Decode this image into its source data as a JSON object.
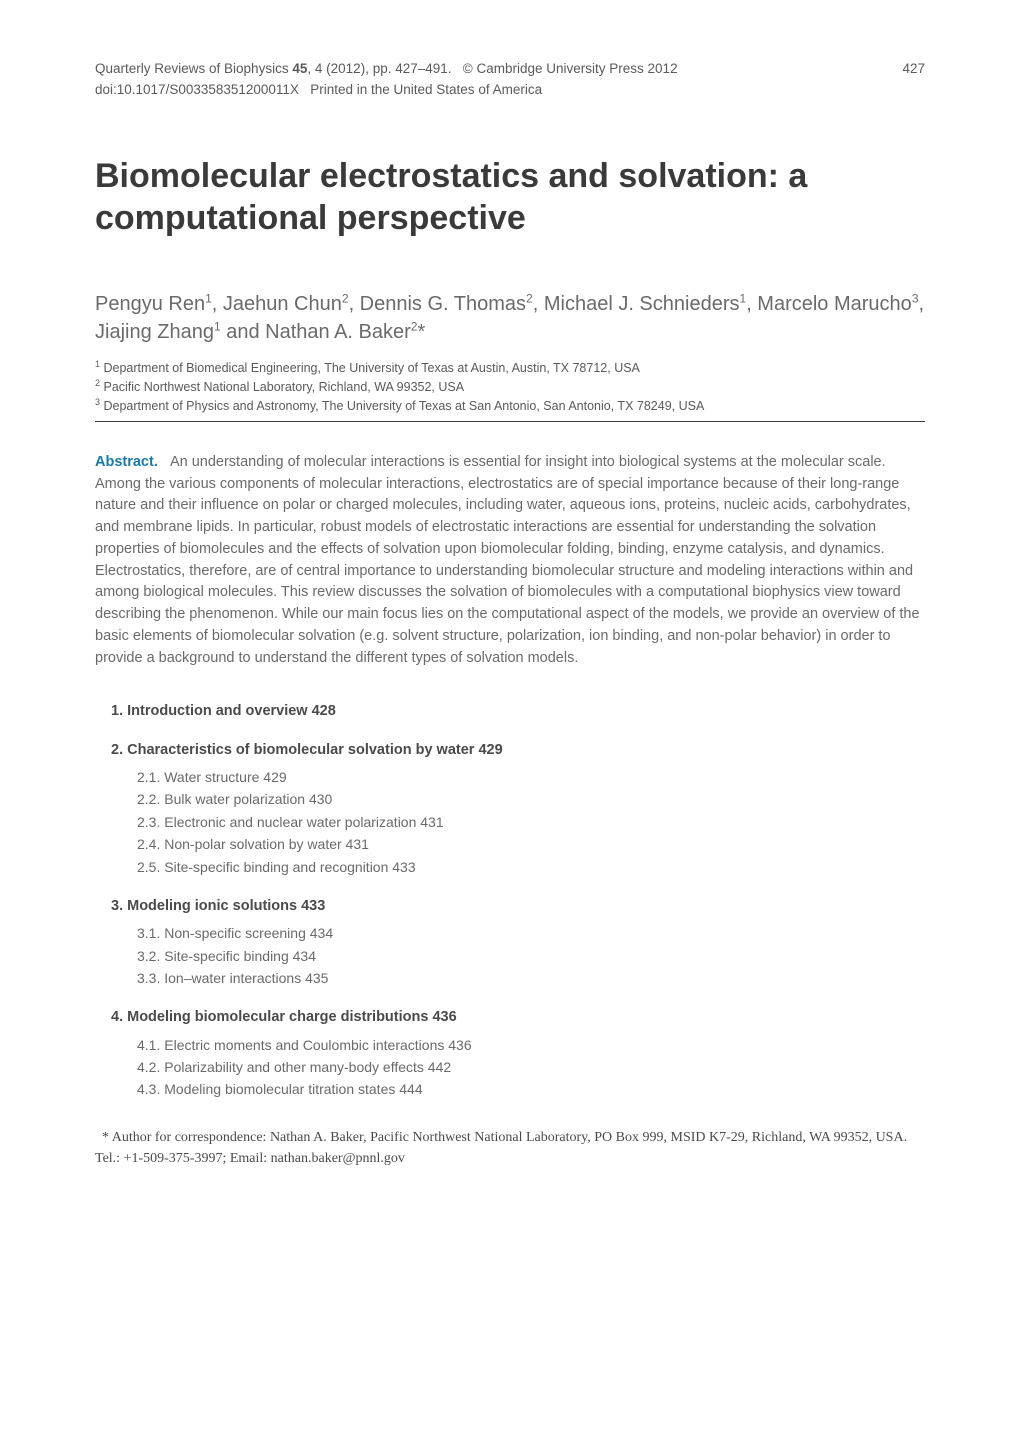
{
  "journal": {
    "name": "Quarterly Reviews of Biophysics",
    "volume": "45",
    "issue": "4",
    "year": "2012",
    "pages": "pp. 427–491",
    "copyright": "© Cambridge University Press 2012",
    "doi": "doi:10.1017/S003358351200011X",
    "printed": "Printed in the United States of America",
    "page_number": "427"
  },
  "title": "Biomolecular electrostatics and solvation: a computational perspective",
  "authors_html": "Pengyu Ren<sup>1</sup>, Jaehun Chun<sup>2</sup>, Dennis G. Thomas<sup>2</sup>, Michael J. Schnieders<sup>1</sup>, Marcelo Marucho<sup>3</sup>, Jiajing Zhang<sup>1</sup> and Nathan A. Baker<sup>2</sup>*",
  "affiliations": [
    {
      "num": "1",
      "text": "Department of Biomedical Engineering, The University of Texas at Austin, Austin, TX 78712, USA"
    },
    {
      "num": "2",
      "text": "Pacific Northwest National Laboratory, Richland, WA 99352, USA"
    },
    {
      "num": "3",
      "text": "Department of Physics and Astronomy, The University of Texas at San Antonio, San Antonio, TX 78249, USA"
    }
  ],
  "abstract": {
    "label": "Abstract.",
    "text": "An understanding of molecular interactions is essential for insight into biological systems at the molecular scale. Among the various components of molecular interactions, electrostatics are of special importance because of their long-range nature and their influence on polar or charged molecules, including water, aqueous ions, proteins, nucleic acids, carbohydrates, and membrane lipids. In particular, robust models of electrostatic interactions are essential for understanding the solvation properties of biomolecules and the effects of solvation upon biomolecular folding, binding, enzyme catalysis, and dynamics. Electrostatics, therefore, are of central importance to understanding biomolecular structure and modeling interactions within and among biological molecules. This review discusses the solvation of biomolecules with a computational biophysics view toward describing the phenomenon. While our main focus lies on the computational aspect of the models, we provide an overview of the basic elements of biomolecular solvation (e.g. solvent structure, polarization, ion binding, and non-polar behavior) in order to provide a background to understand the different types of solvation models."
  },
  "toc": [
    {
      "num": "1.",
      "title": "Introduction and overview",
      "page": "428",
      "subs": []
    },
    {
      "num": "2.",
      "title": "Characteristics of biomolecular solvation by water",
      "page": "429",
      "subs": [
        {
          "num": "2.1.",
          "title": "Water structure",
          "page": "429"
        },
        {
          "num": "2.2.",
          "title": "Bulk water polarization",
          "page": "430"
        },
        {
          "num": "2.3.",
          "title": "Electronic and nuclear water polarization",
          "page": "431"
        },
        {
          "num": "2.4.",
          "title": "Non-polar solvation by water",
          "page": "431"
        },
        {
          "num": "2.5.",
          "title": "Site-specific binding and recognition",
          "page": "433"
        }
      ]
    },
    {
      "num": "3.",
      "title": "Modeling ionic solutions",
      "page": "433",
      "subs": [
        {
          "num": "3.1.",
          "title": "Non-specific screening",
          "page": "434"
        },
        {
          "num": "3.2.",
          "title": "Site-specific binding",
          "page": "434"
        },
        {
          "num": "3.3.",
          "title": "Ion–water interactions",
          "page": "435"
        }
      ]
    },
    {
      "num": "4.",
      "title": "Modeling biomolecular charge distributions",
      "page": "436",
      "subs": [
        {
          "num": "4.1.",
          "title": "Electric moments and Coulombic interactions",
          "page": "436"
        },
        {
          "num": "4.2.",
          "title": "Polarizability and other many-body effects",
          "page": "442"
        },
        {
          "num": "4.3.",
          "title": "Modeling biomolecular titration states",
          "page": "444"
        }
      ]
    }
  ],
  "correspondence": "* Author for correspondence: Nathan A. Baker, Pacific Northwest National Laboratory, PO Box 999, MSID K7-29, Richland, WA 99352, USA. Tel.: +1-509-375-3997; Email: nathan.baker@pnnl.gov",
  "colors": {
    "accent": "#1a7aa8",
    "text": "#4a4a4a",
    "text_light": "#6a6a6a",
    "background": "#ffffff",
    "rule": "#3a3a3a"
  },
  "typography": {
    "title_fontsize_pt": 26,
    "authors_fontsize_pt": 15,
    "body_fontsize_pt": 11,
    "heading_fontsize_pt": 11,
    "font_family_sans": "Helvetica Neue, Arial, sans-serif",
    "font_family_serif": "Georgia, Times New Roman, serif"
  }
}
